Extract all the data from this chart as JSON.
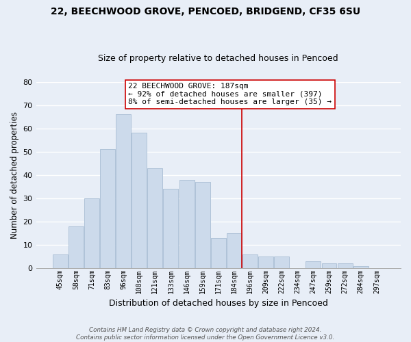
{
  "title": "22, BEECHWOOD GROVE, PENCOED, BRIDGEND, CF35 6SU",
  "subtitle": "Size of property relative to detached houses in Pencoed",
  "xlabel": "Distribution of detached houses by size in Pencoed",
  "ylabel": "Number of detached properties",
  "bar_labels": [
    "45sqm",
    "58sqm",
    "71sqm",
    "83sqm",
    "96sqm",
    "108sqm",
    "121sqm",
    "133sqm",
    "146sqm",
    "159sqm",
    "171sqm",
    "184sqm",
    "196sqm",
    "209sqm",
    "222sqm",
    "234sqm",
    "247sqm",
    "259sqm",
    "272sqm",
    "284sqm",
    "297sqm"
  ],
  "bar_values": [
    6,
    18,
    30,
    51,
    66,
    58,
    43,
    34,
    38,
    37,
    13,
    15,
    6,
    5,
    5,
    0,
    3,
    2,
    2,
    1,
    0
  ],
  "bar_color": "#ccdaeb",
  "bar_edge_color": "#a8bdd4",
  "vline_x_index": 11.5,
  "vline_color": "#cc0000",
  "annotation_line1": "22 BEECHWOOD GROVE: 187sqm",
  "annotation_line2": "← 92% of detached houses are smaller (397)",
  "annotation_line3": "8% of semi-detached houses are larger (35) →",
  "annotation_box_color": "#ffffff",
  "annotation_border_color": "#cc0000",
  "ylim": [
    0,
    80
  ],
  "yticks": [
    0,
    10,
    20,
    30,
    40,
    50,
    60,
    70,
    80
  ],
  "footer_text": "Contains HM Land Registry data © Crown copyright and database right 2024.\nContains public sector information licensed under the Open Government Licence v3.0.",
  "background_color": "#e8eef7",
  "grid_color": "#ffffff",
  "title_fontsize": 10,
  "subtitle_fontsize": 9
}
